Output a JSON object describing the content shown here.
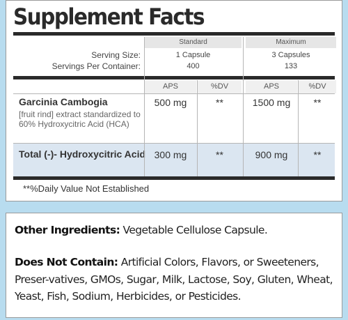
{
  "title": "Supplement Facts",
  "columns": {
    "standard": "Standard",
    "maximum": "Maximum"
  },
  "serving": {
    "size_label": "Serving Size:",
    "per_container_label": "Servings Per Container:",
    "standard_size": "1 Capsule",
    "standard_servings": "400",
    "maximum_size": "3 Capsules",
    "maximum_servings": "133"
  },
  "subheaders": {
    "aps": "APS",
    "dv": "%DV"
  },
  "rows": [
    {
      "name": "Garcinia Cambogia",
      "description": "[fruit rind] extract standardized to 60% Hydroxycitric Acid (HCA)",
      "standard_aps": "500 mg",
      "standard_dv": "**",
      "maximum_aps": "1500 mg",
      "maximum_dv": "**"
    },
    {
      "name": "Total (-)- Hydroxycitric Acid",
      "standard_aps": "300 mg",
      "standard_dv": "**",
      "maximum_aps": "900 mg",
      "maximum_dv": "**"
    }
  ],
  "footnote": "**%Daily Value Not Established",
  "other_ingredients": {
    "label": "Other Ingredients:",
    "text": "Vegetable Cellulose Capsule."
  },
  "does_not_contain": {
    "label": "Does Not Contain:",
    "text": "Artificial Colors, Flavors, or Sweeteners, Preser-vatives, GMOs, Sugar, Milk, Lactose, Soy, Gluten, Wheat, Yeast, Fish, Sodium, Herbicides, or Pesticides."
  },
  "colors": {
    "background": "#b8dcef",
    "highlight_row": "#dbe6f1",
    "header_fill": "#e6e6e6"
  }
}
